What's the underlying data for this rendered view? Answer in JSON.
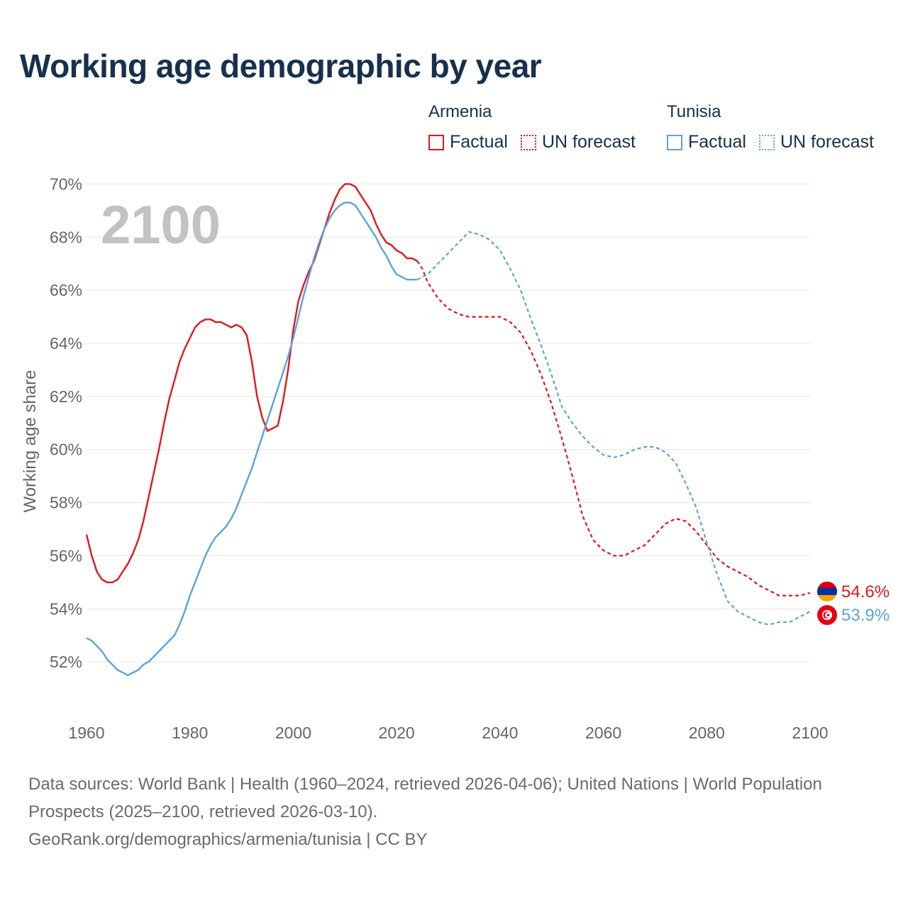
{
  "title": "Working age demographic by year",
  "legend": {
    "groups": [
      {
        "country": "Armenia",
        "factual_label": "Factual",
        "forecast_label": "UN forecast",
        "color": "#e3161b"
      },
      {
        "country": "Tunisia",
        "factual_label": "Factual",
        "forecast_label": "UN forecast",
        "color": "#5ba3e0"
      }
    ]
  },
  "footer": {
    "sources": "Data sources: World Bank | Health (1960–2024, retrieved 2026-04-06); United Nations | World Population Prospects (2025–2100, retrieved 2026-03-10).",
    "attribution": "GeoRank.org/demographics/armenia/tunisia | CC BY"
  },
  "chart_data": {
    "type": "line",
    "title": "Working age demographic by year",
    "year_watermark": "2100",
    "xlabel": "",
    "ylabel": "Working age share",
    "xlim": [
      1960,
      2100
    ],
    "ylim": [
      50,
      71
    ],
    "x_ticks": [
      1960,
      1980,
      2000,
      2020,
      2040,
      2060,
      2080,
      2100
    ],
    "y_ticks": [
      52,
      54,
      56,
      58,
      60,
      62,
      64,
      66,
      68,
      70
    ],
    "y_tick_suffix": "%",
    "grid": true,
    "series": [
      {
        "name": "Armenia",
        "color": "#e3161b",
        "end_label": "54.6%",
        "factual": [
          [
            1960,
            56.8
          ],
          [
            1961,
            56.0
          ],
          [
            1962,
            55.4
          ],
          [
            1963,
            55.1
          ],
          [
            1964,
            55.0
          ],
          [
            1965,
            55.0
          ],
          [
            1966,
            55.1
          ],
          [
            1967,
            55.4
          ],
          [
            1968,
            55.7
          ],
          [
            1969,
            56.1
          ],
          [
            1970,
            56.6
          ],
          [
            1971,
            57.3
          ],
          [
            1972,
            58.2
          ],
          [
            1973,
            59.1
          ],
          [
            1974,
            60.0
          ],
          [
            1975,
            61.0
          ],
          [
            1976,
            61.9
          ],
          [
            1977,
            62.6
          ],
          [
            1978,
            63.3
          ],
          [
            1979,
            63.8
          ],
          [
            1980,
            64.2
          ],
          [
            1981,
            64.6
          ],
          [
            1982,
            64.8
          ],
          [
            1983,
            64.9
          ],
          [
            1984,
            64.9
          ],
          [
            1985,
            64.8
          ],
          [
            1986,
            64.8
          ],
          [
            1987,
            64.7
          ],
          [
            1988,
            64.6
          ],
          [
            1989,
            64.7
          ],
          [
            1990,
            64.6
          ],
          [
            1991,
            64.3
          ],
          [
            1992,
            63.3
          ],
          [
            1993,
            62.0
          ],
          [
            1994,
            61.2
          ],
          [
            1995,
            60.7
          ],
          [
            1996,
            60.8
          ],
          [
            1997,
            60.9
          ],
          [
            1998,
            61.8
          ],
          [
            1999,
            63.0
          ],
          [
            2000,
            64.5
          ],
          [
            2001,
            65.6
          ],
          [
            2002,
            66.2
          ],
          [
            2003,
            66.7
          ],
          [
            2004,
            67.1
          ],
          [
            2005,
            67.7
          ],
          [
            2006,
            68.3
          ],
          [
            2007,
            68.9
          ],
          [
            2008,
            69.4
          ],
          [
            2009,
            69.8
          ],
          [
            2010,
            70.0
          ],
          [
            2011,
            70.0
          ],
          [
            2012,
            69.9
          ],
          [
            2013,
            69.6
          ],
          [
            2014,
            69.3
          ],
          [
            2015,
            69.0
          ],
          [
            2016,
            68.5
          ],
          [
            2017,
            68.1
          ],
          [
            2018,
            67.8
          ],
          [
            2019,
            67.7
          ],
          [
            2020,
            67.5
          ],
          [
            2021,
            67.4
          ],
          [
            2022,
            67.2
          ],
          [
            2023,
            67.2
          ],
          [
            2024,
            67.1
          ]
        ],
        "forecast": [
          [
            2024,
            67.1
          ],
          [
            2025,
            66.8
          ],
          [
            2026,
            66.3
          ],
          [
            2028,
            65.7
          ],
          [
            2030,
            65.3
          ],
          [
            2032,
            65.1
          ],
          [
            2034,
            65.0
          ],
          [
            2036,
            65.0
          ],
          [
            2038,
            65.0
          ],
          [
            2040,
            65.0
          ],
          [
            2042,
            64.8
          ],
          [
            2044,
            64.4
          ],
          [
            2046,
            63.7
          ],
          [
            2048,
            62.8
          ],
          [
            2050,
            61.7
          ],
          [
            2052,
            60.4
          ],
          [
            2054,
            59.0
          ],
          [
            2056,
            57.5
          ],
          [
            2058,
            56.6
          ],
          [
            2060,
            56.2
          ],
          [
            2062,
            56.0
          ],
          [
            2064,
            56.0
          ],
          [
            2066,
            56.2
          ],
          [
            2068,
            56.4
          ],
          [
            2070,
            56.8
          ],
          [
            2072,
            57.2
          ],
          [
            2074,
            57.4
          ],
          [
            2076,
            57.3
          ],
          [
            2078,
            56.9
          ],
          [
            2080,
            56.4
          ],
          [
            2082,
            55.9
          ],
          [
            2084,
            55.6
          ],
          [
            2086,
            55.4
          ],
          [
            2088,
            55.2
          ],
          [
            2090,
            54.9
          ],
          [
            2092,
            54.7
          ],
          [
            2094,
            54.5
          ],
          [
            2096,
            54.5
          ],
          [
            2098,
            54.5
          ],
          [
            2100,
            54.6
          ]
        ]
      },
      {
        "name": "Tunisia",
        "color": "#5ba3e0",
        "end_label": "53.9%",
        "factual": [
          [
            1960,
            52.9
          ],
          [
            1961,
            52.8
          ],
          [
            1962,
            52.6
          ],
          [
            1963,
            52.4
          ],
          [
            1964,
            52.1
          ],
          [
            1965,
            51.9
          ],
          [
            1966,
            51.7
          ],
          [
            1967,
            51.6
          ],
          [
            1968,
            51.5
          ],
          [
            1969,
            51.6
          ],
          [
            1970,
            51.7
          ],
          [
            1971,
            51.9
          ],
          [
            1972,
            52.0
          ],
          [
            1973,
            52.2
          ],
          [
            1974,
            52.4
          ],
          [
            1975,
            52.6
          ],
          [
            1976,
            52.8
          ],
          [
            1977,
            53.0
          ],
          [
            1978,
            53.4
          ],
          [
            1979,
            53.9
          ],
          [
            1980,
            54.5
          ],
          [
            1981,
            55.0
          ],
          [
            1982,
            55.5
          ],
          [
            1983,
            56.0
          ],
          [
            1984,
            56.4
          ],
          [
            1985,
            56.7
          ],
          [
            1986,
            56.9
          ],
          [
            1987,
            57.1
          ],
          [
            1988,
            57.4
          ],
          [
            1989,
            57.8
          ],
          [
            1990,
            58.3
          ],
          [
            1991,
            58.8
          ],
          [
            1992,
            59.3
          ],
          [
            1993,
            59.9
          ],
          [
            1994,
            60.5
          ],
          [
            1995,
            61.1
          ],
          [
            1996,
            61.7
          ],
          [
            1997,
            62.3
          ],
          [
            1998,
            62.9
          ],
          [
            1999,
            63.5
          ],
          [
            2000,
            64.2
          ],
          [
            2001,
            65.0
          ],
          [
            2002,
            65.8
          ],
          [
            2003,
            66.5
          ],
          [
            2004,
            67.2
          ],
          [
            2005,
            67.8
          ],
          [
            2006,
            68.3
          ],
          [
            2007,
            68.7
          ],
          [
            2008,
            69.0
          ],
          [
            2009,
            69.2
          ],
          [
            2010,
            69.3
          ],
          [
            2011,
            69.3
          ],
          [
            2012,
            69.2
          ],
          [
            2013,
            68.9
          ],
          [
            2014,
            68.6
          ],
          [
            2015,
            68.3
          ],
          [
            2016,
            68.0
          ],
          [
            2017,
            67.6
          ],
          [
            2018,
            67.3
          ],
          [
            2019,
            66.9
          ],
          [
            2020,
            66.6
          ],
          [
            2021,
            66.5
          ],
          [
            2022,
            66.4
          ],
          [
            2023,
            66.4
          ],
          [
            2024,
            66.4
          ]
        ],
        "forecast": [
          [
            2024,
            66.4
          ],
          [
            2026,
            66.6
          ],
          [
            2028,
            67.0
          ],
          [
            2030,
            67.4
          ],
          [
            2032,
            67.8
          ],
          [
            2034,
            68.2
          ],
          [
            2036,
            68.1
          ],
          [
            2038,
            67.9
          ],
          [
            2040,
            67.5
          ],
          [
            2042,
            66.8
          ],
          [
            2044,
            66.0
          ],
          [
            2046,
            64.9
          ],
          [
            2048,
            63.9
          ],
          [
            2050,
            62.8
          ],
          [
            2052,
            61.6
          ],
          [
            2054,
            61.0
          ],
          [
            2056,
            60.5
          ],
          [
            2058,
            60.1
          ],
          [
            2060,
            59.8
          ],
          [
            2062,
            59.7
          ],
          [
            2064,
            59.8
          ],
          [
            2066,
            60.0
          ],
          [
            2068,
            60.1
          ],
          [
            2070,
            60.1
          ],
          [
            2072,
            59.9
          ],
          [
            2074,
            59.5
          ],
          [
            2076,
            58.7
          ],
          [
            2078,
            57.8
          ],
          [
            2080,
            56.5
          ],
          [
            2082,
            55.3
          ],
          [
            2084,
            54.3
          ],
          [
            2086,
            53.9
          ],
          [
            2088,
            53.7
          ],
          [
            2090,
            53.5
          ],
          [
            2092,
            53.4
          ],
          [
            2094,
            53.5
          ],
          [
            2096,
            53.5
          ],
          [
            2098,
            53.7
          ],
          [
            2100,
            53.9
          ]
        ]
      }
    ]
  }
}
